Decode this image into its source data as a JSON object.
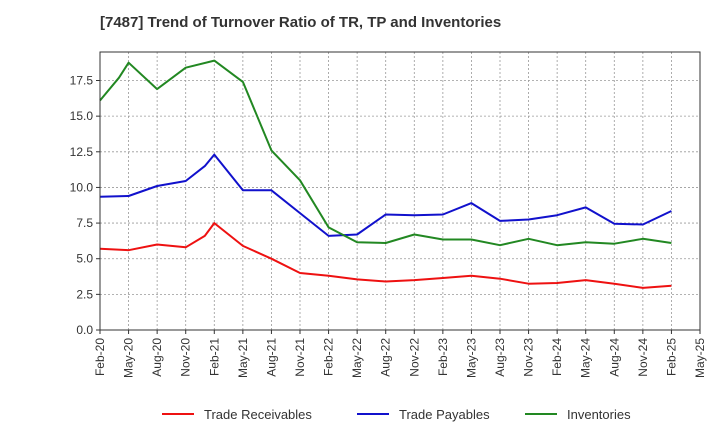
{
  "chart_data": {
    "type": "line",
    "title": "[7487]  Trend of Turnover Ratio of TR, TP and Inventories",
    "xlabel": "",
    "ylabel": "",
    "ylim": [
      0,
      19.5
    ],
    "yticks": [
      "0.0",
      "2.5",
      "5.0",
      "7.5",
      "10.0",
      "12.5",
      "15.0",
      "17.5"
    ],
    "xtick_labels": [
      "Feb-20",
      "May-20",
      "Aug-20",
      "Nov-20",
      "Feb-21",
      "May-21",
      "Aug-21",
      "Nov-21",
      "Feb-22",
      "May-22",
      "Aug-22",
      "Nov-22",
      "Feb-23",
      "May-23",
      "Aug-23",
      "Nov-23",
      "Feb-24",
      "May-24",
      "Aug-24",
      "Nov-24",
      "Feb-25",
      "May-25"
    ],
    "x": [
      "Feb-20",
      "Apr-20",
      "May-20",
      "Jul-20",
      "Aug-20",
      "Oct-20",
      "Nov-20",
      "Jan-21",
      "Feb-21",
      "Apr-21",
      "May-21",
      "Jul-21",
      "Aug-21",
      "Oct-21",
      "Nov-21",
      "Jan-22",
      "Feb-22",
      "Apr-22",
      "May-22",
      "Jul-22",
      "Aug-22",
      "Oct-22",
      "Nov-22",
      "Jan-23",
      "Feb-23",
      "Apr-23",
      "May-23",
      "Jul-23",
      "Aug-23",
      "Oct-23",
      "Nov-23",
      "Jan-24",
      "Feb-24",
      "Apr-24",
      "May-24",
      "Jul-24",
      "Aug-24",
      "Oct-24",
      "Nov-24",
      "Jan-25",
      "Feb-25"
    ],
    "grid": true,
    "legend_position": "bottom",
    "series": [
      {
        "name": "Trade Receivables",
        "color": "#ee1111",
        "points": [
          [
            "Feb-20",
            5.7
          ],
          [
            "May-20",
            5.6
          ],
          [
            "Aug-20",
            6.0
          ],
          [
            "Nov-20",
            5.8
          ],
          [
            "Jan-21",
            6.6
          ],
          [
            "Feb-21",
            7.5
          ],
          [
            "May-21",
            5.9
          ],
          [
            "Aug-21",
            5.0
          ],
          [
            "Nov-21",
            4.0
          ],
          [
            "Feb-22",
            3.8
          ],
          [
            "May-22",
            3.55
          ],
          [
            "Aug-22",
            3.4
          ],
          [
            "Nov-22",
            3.5
          ],
          [
            "Feb-23",
            3.65
          ],
          [
            "May-23",
            3.8
          ],
          [
            "Aug-23",
            3.6
          ],
          [
            "Nov-23",
            3.25
          ],
          [
            "Feb-24",
            3.3
          ],
          [
            "May-24",
            3.5
          ],
          [
            "Aug-24",
            3.25
          ],
          [
            "Nov-24",
            2.95
          ],
          [
            "Feb-25",
            3.1
          ]
        ]
      },
      {
        "name": "Trade Payables",
        "color": "#1111cc",
        "points": [
          [
            "Feb-20",
            9.35
          ],
          [
            "May-20",
            9.4
          ],
          [
            "Aug-20",
            10.1
          ],
          [
            "Nov-20",
            10.45
          ],
          [
            "Jan-21",
            11.5
          ],
          [
            "Feb-21",
            12.3
          ],
          [
            "May-21",
            9.8
          ],
          [
            "Aug-21",
            9.8
          ],
          [
            "Nov-21",
            8.2
          ],
          [
            "Feb-22",
            6.6
          ],
          [
            "May-22",
            6.7
          ],
          [
            "Aug-22",
            8.1
          ],
          [
            "Nov-22",
            8.05
          ],
          [
            "Feb-23",
            8.1
          ],
          [
            "May-23",
            8.9
          ],
          [
            "Aug-23",
            7.65
          ],
          [
            "Nov-23",
            7.75
          ],
          [
            "Feb-24",
            8.05
          ],
          [
            "May-24",
            8.6
          ],
          [
            "Aug-24",
            7.45
          ],
          [
            "Nov-24",
            7.4
          ],
          [
            "Feb-25",
            8.35
          ]
        ]
      },
      {
        "name": "Inventories",
        "color": "#228822",
        "points": [
          [
            "Feb-20",
            16.1
          ],
          [
            "Apr-20",
            17.7
          ],
          [
            "May-20",
            18.75
          ],
          [
            "Aug-20",
            16.9
          ],
          [
            "Nov-20",
            18.4
          ],
          [
            "Feb-21",
            18.9
          ],
          [
            "May-21",
            17.4
          ],
          [
            "Aug-21",
            12.6
          ],
          [
            "Nov-21",
            10.5
          ],
          [
            "Feb-22",
            7.2
          ],
          [
            "May-22",
            6.15
          ],
          [
            "Aug-22",
            6.1
          ],
          [
            "Nov-22",
            6.7
          ],
          [
            "Feb-23",
            6.35
          ],
          [
            "May-23",
            6.35
          ],
          [
            "Aug-23",
            5.95
          ],
          [
            "Nov-23",
            6.4
          ],
          [
            "Feb-24",
            5.95
          ],
          [
            "May-24",
            6.15
          ],
          [
            "Aug-24",
            6.05
          ],
          [
            "Nov-24",
            6.4
          ],
          [
            "Feb-25",
            6.1
          ]
        ]
      }
    ]
  }
}
